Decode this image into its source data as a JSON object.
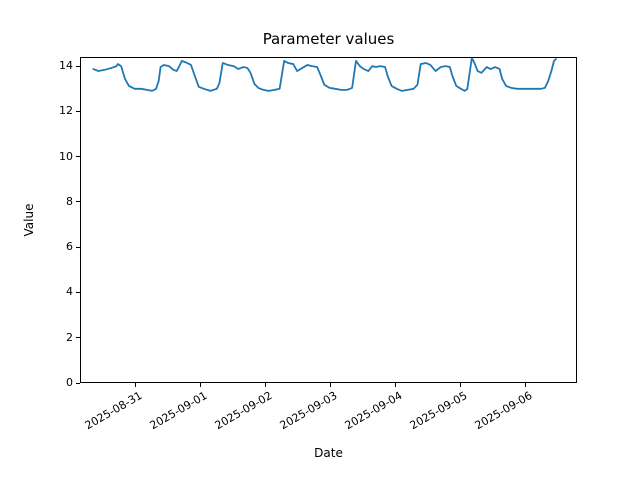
{
  "chart_data": {
    "type": "line",
    "title": "Parameter values",
    "xlabel": "Date",
    "ylabel": "Value",
    "grid": false,
    "legend": null,
    "x_unit": "days since 2025-08-31 00:00",
    "xlim": [
      -0.85,
      6.8
    ],
    "ylim": [
      0,
      14.4
    ],
    "y_ticks": [
      0,
      2,
      4,
      6,
      8,
      10,
      12,
      14
    ],
    "x_ticks": [
      {
        "position": 0,
        "label": "2025-08-31"
      },
      {
        "position": 1,
        "label": "2025-09-01"
      },
      {
        "position": 2,
        "label": "2025-09-02"
      },
      {
        "position": 3,
        "label": "2025-09-03"
      },
      {
        "position": 4,
        "label": "2025-09-04"
      },
      {
        "position": 5,
        "label": "2025-09-05"
      },
      {
        "position": 6,
        "label": "2025-09-06"
      }
    ],
    "series": [
      {
        "name": "Parameter values",
        "color": "#1f77b4",
        "line_width": 1.8,
        "points": [
          [
            -0.66,
            13.91
          ],
          [
            -0.58,
            13.82
          ],
          [
            -0.49,
            13.87
          ],
          [
            -0.38,
            13.96
          ],
          [
            -0.3,
            14.04
          ],
          [
            -0.28,
            14.13
          ],
          [
            -0.23,
            14.04
          ],
          [
            -0.17,
            13.47
          ],
          [
            -0.11,
            13.16
          ],
          [
            -0.02,
            13.03
          ],
          [
            0.08,
            13.03
          ],
          [
            0.17,
            12.98
          ],
          [
            0.25,
            12.94
          ],
          [
            0.31,
            13.03
          ],
          [
            0.35,
            13.38
          ],
          [
            0.38,
            14.0
          ],
          [
            0.43,
            14.09
          ],
          [
            0.51,
            14.04
          ],
          [
            0.58,
            13.87
          ],
          [
            0.63,
            13.82
          ],
          [
            0.71,
            14.27
          ],
          [
            0.79,
            14.18
          ],
          [
            0.85,
            14.09
          ],
          [
            0.91,
            13.6
          ],
          [
            0.97,
            13.12
          ],
          [
            1.05,
            13.03
          ],
          [
            1.15,
            12.94
          ],
          [
            1.25,
            13.03
          ],
          [
            1.29,
            13.29
          ],
          [
            1.34,
            14.18
          ],
          [
            1.42,
            14.09
          ],
          [
            1.51,
            14.04
          ],
          [
            1.58,
            13.91
          ],
          [
            1.66,
            14.0
          ],
          [
            1.72,
            13.96
          ],
          [
            1.77,
            13.74
          ],
          [
            1.83,
            13.25
          ],
          [
            1.89,
            13.07
          ],
          [
            1.97,
            12.98
          ],
          [
            2.05,
            12.94
          ],
          [
            2.14,
            12.98
          ],
          [
            2.22,
            13.03
          ],
          [
            2.29,
            14.27
          ],
          [
            2.35,
            14.18
          ],
          [
            2.43,
            14.13
          ],
          [
            2.49,
            13.82
          ],
          [
            2.57,
            13.96
          ],
          [
            2.65,
            14.09
          ],
          [
            2.72,
            14.04
          ],
          [
            2.8,
            14.0
          ],
          [
            2.85,
            13.65
          ],
          [
            2.91,
            13.21
          ],
          [
            2.99,
            13.07
          ],
          [
            3.08,
            13.03
          ],
          [
            3.17,
            12.98
          ],
          [
            3.26,
            12.98
          ],
          [
            3.34,
            13.07
          ],
          [
            3.4,
            14.27
          ],
          [
            3.46,
            14.04
          ],
          [
            3.52,
            13.91
          ],
          [
            3.59,
            13.82
          ],
          [
            3.65,
            14.04
          ],
          [
            3.71,
            14.0
          ],
          [
            3.77,
            14.04
          ],
          [
            3.85,
            14.0
          ],
          [
            3.89,
            13.6
          ],
          [
            3.95,
            13.16
          ],
          [
            4.03,
            13.03
          ],
          [
            4.11,
            12.94
          ],
          [
            4.2,
            12.98
          ],
          [
            4.29,
            13.03
          ],
          [
            4.35,
            13.21
          ],
          [
            4.4,
            14.13
          ],
          [
            4.48,
            14.18
          ],
          [
            4.55,
            14.09
          ],
          [
            4.63,
            13.82
          ],
          [
            4.71,
            14.0
          ],
          [
            4.79,
            14.04
          ],
          [
            4.85,
            14.0
          ],
          [
            4.89,
            13.6
          ],
          [
            4.95,
            13.16
          ],
          [
            5.02,
            13.03
          ],
          [
            5.08,
            12.94
          ],
          [
            5.12,
            13.03
          ],
          [
            5.19,
            14.4
          ],
          [
            5.23,
            14.18
          ],
          [
            5.28,
            13.82
          ],
          [
            5.34,
            13.74
          ],
          [
            5.42,
            14.0
          ],
          [
            5.48,
            13.91
          ],
          [
            5.55,
            14.0
          ],
          [
            5.62,
            13.91
          ],
          [
            5.66,
            13.47
          ],
          [
            5.72,
            13.16
          ],
          [
            5.8,
            13.07
          ],
          [
            5.89,
            13.03
          ],
          [
            5.99,
            13.03
          ],
          [
            6.08,
            13.03
          ],
          [
            6.17,
            13.03
          ],
          [
            6.26,
            13.03
          ],
          [
            6.32,
            13.07
          ],
          [
            6.37,
            13.38
          ],
          [
            6.42,
            13.82
          ],
          [
            6.46,
            14.27
          ],
          [
            6.49,
            14.35
          ]
        ]
      }
    ]
  }
}
